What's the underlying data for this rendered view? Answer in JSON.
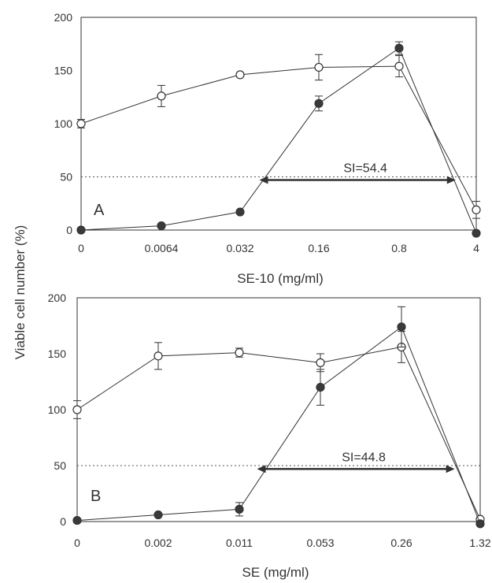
{
  "figure": {
    "shared_ylabel": "Viable cell number (%)",
    "colors": {
      "ink": "#333333",
      "open_fill": "#ffffff",
      "filled_fill": "#3a3a3a",
      "guide": "#555555"
    }
  },
  "chart_data": [
    {
      "type": "line",
      "panel_label": "A",
      "xlabel": "SE-10 (mg/ml)",
      "categories": [
        "0",
        "0.0064",
        "0.032",
        "0.16",
        "0.8",
        "4"
      ],
      "ylim": [
        0,
        200
      ],
      "yticks": [
        "0",
        "50",
        "100",
        "150",
        "200"
      ],
      "grid": false,
      "series": [
        {
          "marker": "open-circle",
          "values": [
            100,
            126,
            146,
            153,
            154,
            19
          ],
          "errors": [
            4,
            10,
            2,
            12,
            10,
            8
          ]
        },
        {
          "marker": "filled-circle",
          "values": [
            0,
            4,
            17,
            119,
            171,
            -3
          ],
          "errors": [
            0,
            0,
            0,
            7,
            6,
            0
          ]
        }
      ],
      "reference_line": {
        "y": 50,
        "style": "dotted"
      },
      "annotation": {
        "text": "SI=54.4",
        "y": 47,
        "x_from": 0.0475,
        "x_to": 2.6,
        "arrow": "double"
      }
    },
    {
      "type": "line",
      "panel_label": "B",
      "xlabel": "SE (mg/ml)",
      "categories": [
        "0",
        "0.002",
        "0.011",
        "0.053",
        "0.26",
        "1.32"
      ],
      "ylim": [
        0,
        200
      ],
      "yticks": [
        "0",
        "50",
        "100",
        "150",
        "200"
      ],
      "grid": false,
      "series": [
        {
          "marker": "open-circle",
          "values": [
            100,
            148,
            151,
            142,
            156,
            2
          ],
          "errors": [
            8,
            12,
            4,
            8,
            14,
            0
          ]
        },
        {
          "marker": "filled-circle",
          "values": [
            1,
            6,
            11,
            120,
            174,
            -2
          ],
          "errors": [
            0,
            0,
            6,
            16,
            18,
            0
          ]
        }
      ],
      "reference_line": {
        "y": 50,
        "style": "dotted"
      },
      "annotation": {
        "text": "SI=44.8",
        "y": 47,
        "x_from": 0.0155,
        "x_to": 0.78,
        "arrow": "double"
      }
    }
  ]
}
